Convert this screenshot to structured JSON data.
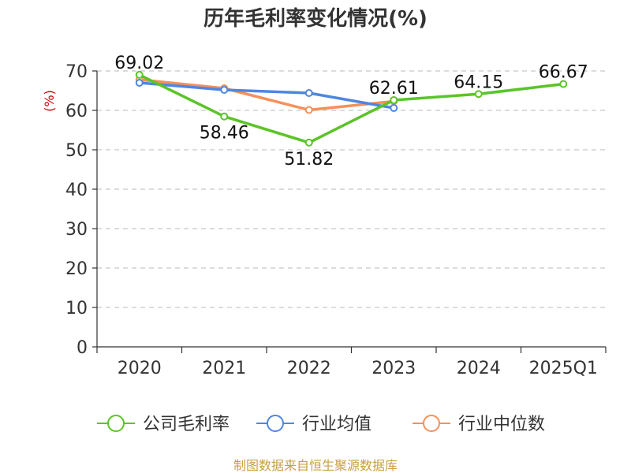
{
  "chart_data": {
    "type": "line",
    "title": "历年毛利率变化情况(%)",
    "ylabel": "(%)",
    "categories": [
      "2020",
      "2021",
      "2022",
      "2023",
      "2024",
      "2025Q1"
    ],
    "y_ticks": [
      "0",
      "10",
      "20",
      "30",
      "40",
      "50",
      "60",
      "70"
    ],
    "ylim": [
      0,
      70
    ],
    "grid": true,
    "legend_position": "bottom",
    "series": [
      {
        "name": "公司毛利率",
        "color": "#5bc427",
        "values": [
          69.02,
          58.46,
          51.82,
          62.61,
          64.15,
          66.67
        ],
        "labels": [
          "69.02",
          "58.46",
          "51.82",
          "62.61",
          "64.15",
          "66.67"
        ]
      },
      {
        "name": "行业均值",
        "color": "#4f86e0",
        "values": [
          67.0,
          65.2,
          64.4,
          60.6,
          null,
          null
        ]
      },
      {
        "name": "行业中位数",
        "color": "#f5905a",
        "values": [
          67.8,
          65.6,
          60.1,
          62.3,
          null,
          null
        ]
      }
    ],
    "source": "制图数据来自恒生聚源数据库"
  }
}
